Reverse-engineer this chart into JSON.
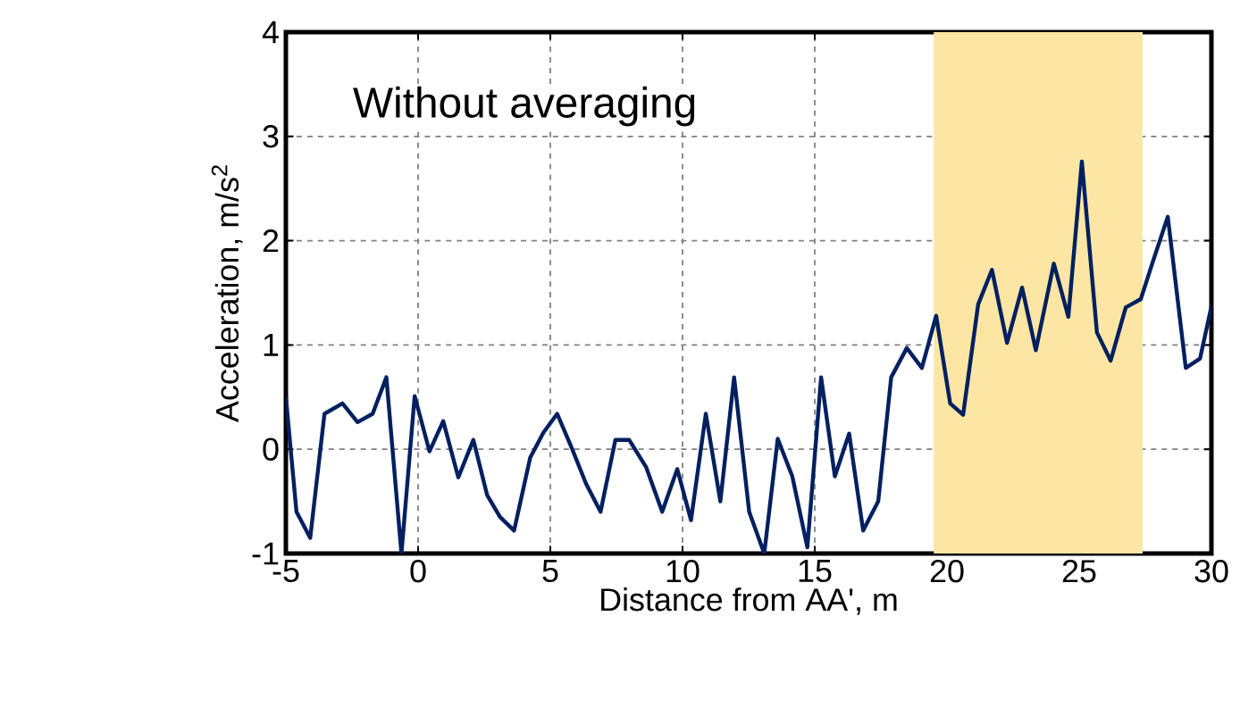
{
  "chart_data": {
    "type": "line",
    "xlabel": "Distance from AA', m",
    "ylabel": "Acceleration, m/s$^{2}$",
    "annotations": [
      "Without averaging"
    ],
    "xlim": [
      -5,
      30
    ],
    "xticks": [
      -5,
      0,
      5,
      10,
      15,
      20,
      25,
      30
    ],
    "ylim": [
      -1,
      4
    ],
    "yticks": [
      -1,
      0,
      1,
      2,
      3,
      4
    ],
    "grid": true,
    "line_style": "solid",
    "marker": "none",
    "bands": [
      {
        "axis": "x",
        "from": 19.5,
        "to": 27.4,
        "color": "#fde6a4"
      }
    ],
    "series": [
      {
        "color": "#002060",
        "x": [
          -5.0,
          -4.6,
          -4.08,
          -3.54,
          -2.86,
          -2.29,
          -1.72,
          -1.2,
          -0.63,
          -0.13,
          0.43,
          0.95,
          1.52,
          2.09,
          2.61,
          3.1,
          3.63,
          4.24,
          4.74,
          5.26,
          5.83,
          6.35,
          6.9,
          7.46,
          7.98,
          8.62,
          9.23,
          9.8,
          10.32,
          10.88,
          11.43,
          11.95,
          12.52,
          13.09,
          13.6,
          14.15,
          14.72,
          15.24,
          15.76,
          16.3,
          16.83,
          17.4,
          17.89,
          18.48,
          19.05,
          19.59,
          20.12,
          20.61,
          21.18,
          21.7,
          22.27,
          22.84,
          23.36,
          24.04,
          24.59,
          25.1,
          25.67,
          26.19,
          26.76,
          27.33,
          27.76,
          28.35,
          29.03,
          29.57,
          30.0
        ],
        "values": [
          0.5,
          -0.6,
          -0.85,
          0.34,
          0.44,
          0.26,
          0.34,
          0.69,
          -1.0,
          0.51,
          -0.02,
          0.27,
          -0.27,
          0.09,
          -0.44,
          -0.65,
          -0.78,
          -0.08,
          0.16,
          0.34,
          0.0,
          -0.33,
          -0.6,
          0.09,
          0.09,
          -0.17,
          -0.6,
          -0.19,
          -0.68,
          0.34,
          -0.5,
          0.69,
          -0.6,
          -1.0,
          0.1,
          -0.26,
          -0.94,
          0.69,
          -0.26,
          0.15,
          -0.78,
          -0.5,
          0.69,
          0.97,
          0.78,
          1.28,
          0.44,
          0.33,
          1.39,
          1.72,
          1.02,
          1.55,
          0.95,
          1.78,
          1.27,
          2.76,
          1.12,
          0.85,
          1.36,
          1.44,
          1.78,
          2.23,
          0.78,
          0.87,
          1.37
        ]
      }
    ]
  }
}
